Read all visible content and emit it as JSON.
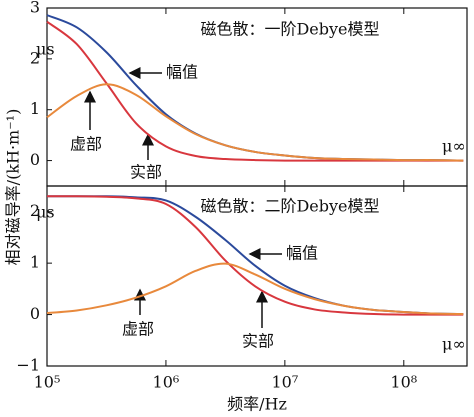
{
  "y_label": "相对磁导率/(kH·m⁻¹)",
  "chart_data": [
    {
      "type": "line",
      "title": "磁色散：一阶Debye模型",
      "log_x": true,
      "x": [
        100000,
        177828,
        316228,
        562341,
        1000000,
        1778279,
        3162278,
        5623413,
        10000000,
        17782794,
        31622777,
        56234133,
        100000000,
        177827941,
        316227766
      ],
      "series": [
        {
          "name": "幅值",
          "color": "#2b4a9c",
          "values": [
            2.86,
            2.62,
            2.13,
            1.48,
            0.91,
            0.53,
            0.3,
            0.17,
            0.1,
            0.05,
            0.03,
            0.02,
            0.01,
            0.01,
            0
          ]
        },
        {
          "name": "实部",
          "color": "#d8373e",
          "values": [
            2.73,
            2.29,
            1.52,
            0.73,
            0.28,
            0.09,
            0.03,
            0.01,
            0,
            0,
            0,
            0,
            0,
            0,
            0
          ]
        },
        {
          "name": "虚部",
          "color": "#e8893c",
          "values": [
            0.85,
            1.27,
            1.5,
            1.29,
            0.87,
            0.52,
            0.3,
            0.17,
            0.1,
            0.05,
            0.03,
            0.02,
            0.01,
            0.01,
            0
          ]
        }
      ],
      "mu_s": "μs",
      "mu_inf": "μ∞",
      "xlim": [
        100000,
        340000000
      ],
      "ylim": [
        -0.5,
        3
      ],
      "yticks": [
        0,
        1,
        2,
        3
      ]
    },
    {
      "type": "line",
      "title": "磁色散：二阶Debye模型",
      "log_x": true,
      "x": [
        100000,
        177828,
        316228,
        562341,
        1000000,
        1778279,
        3162278,
        5623413,
        10000000,
        17782794,
        31622777,
        56234133,
        100000000,
        177827941,
        316227766
      ],
      "series": [
        {
          "name": "幅值",
          "color": "#2b4a9c",
          "values": [
            2.3,
            2.3,
            2.3,
            2.28,
            2.22,
            1.9,
            1.45,
            0.95,
            0.56,
            0.32,
            0.17,
            0.09,
            0.05,
            0.02,
            0.01
          ]
        },
        {
          "name": "实部",
          "color": "#d8373e",
          "values": [
            2.3,
            2.3,
            2.29,
            2.26,
            2.15,
            1.7,
            1.05,
            0.55,
            0.25,
            0.1,
            0.04,
            0.01,
            0,
            0,
            0
          ]
        },
        {
          "name": "虚部",
          "color": "#e8893c",
          "values": [
            0.03,
            0.08,
            0.18,
            0.33,
            0.55,
            0.85,
            0.99,
            0.78,
            0.5,
            0.3,
            0.17,
            0.09,
            0.05,
            0.02,
            0.01
          ]
        }
      ],
      "mu_s": "μs",
      "mu_inf": "μ∞",
      "xlim": [
        100000,
        340000000
      ],
      "ylim": [
        -1,
        2.5
      ],
      "yticks": [
        {
          "value": -1,
          "label": "−1"
        },
        0,
        1,
        2
      ],
      "x_label": "频率/Hz",
      "xticks": [
        {
          "value": 100000,
          "label": "10⁵"
        },
        {
          "value": 1000000,
          "label": "10⁶"
        },
        {
          "value": 10000000,
          "label": "10⁷"
        },
        {
          "value": 100000000,
          "label": "10⁸"
        }
      ]
    }
  ]
}
